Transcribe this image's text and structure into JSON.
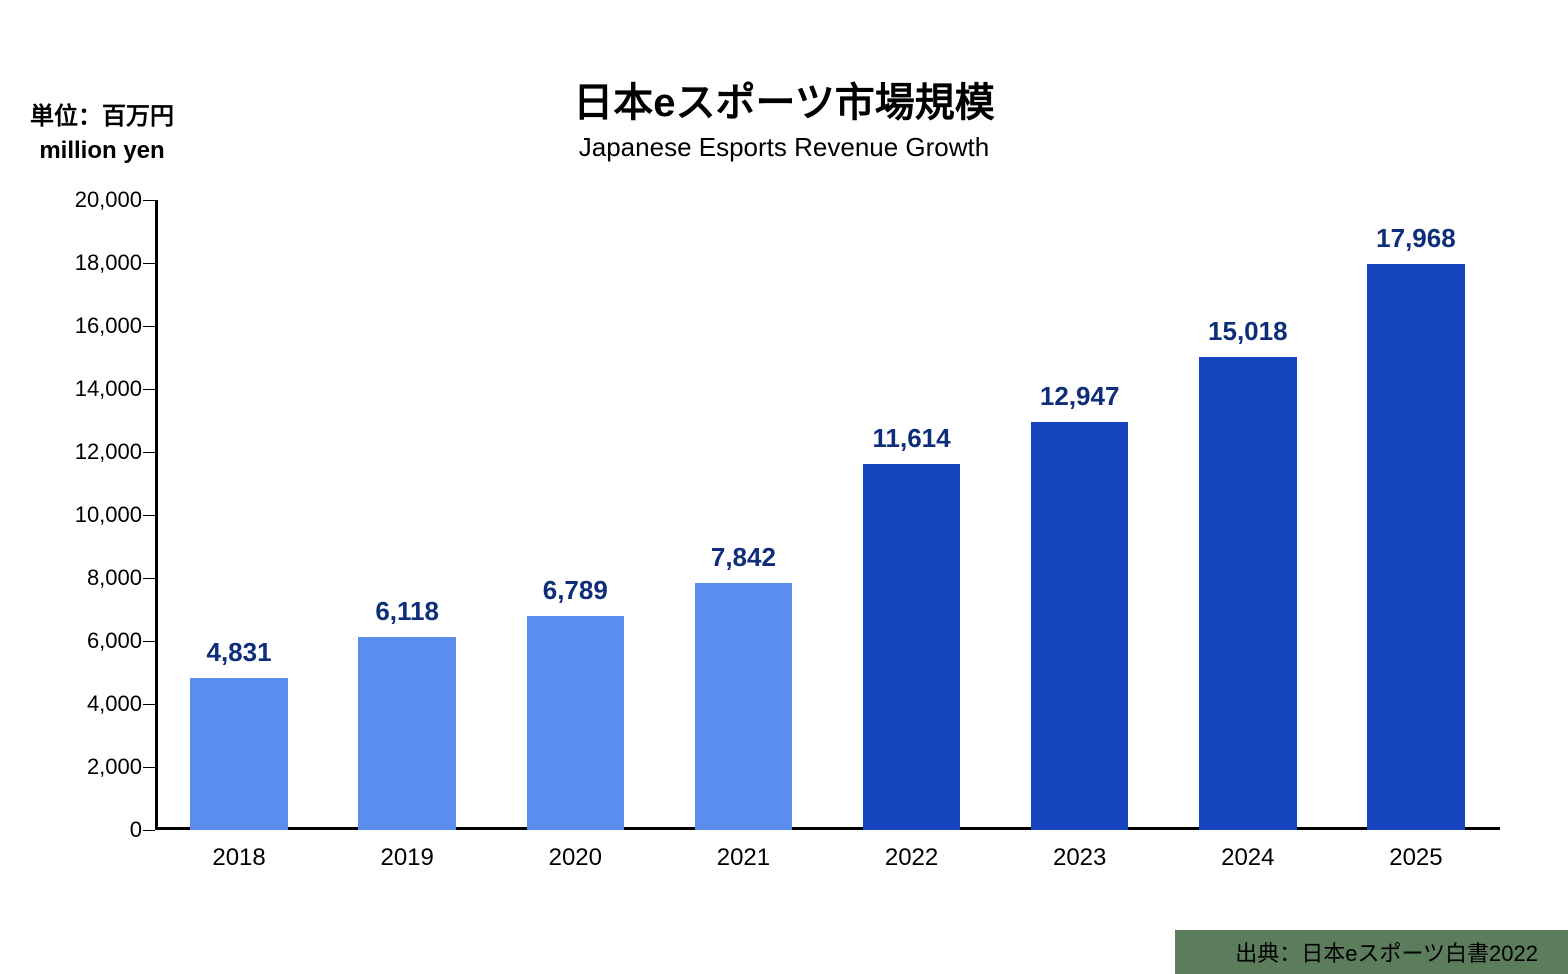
{
  "unit_label_line1": "単位：百万円",
  "unit_label_line2": "million yen",
  "title": "日本eスポーツ市場規模",
  "subtitle": "Japanese Esports Revenue Growth",
  "source_label": "出典：日本eスポーツ白書2022",
  "source_bg_color": "#5c7d5c",
  "chart": {
    "type": "bar",
    "ylim": [
      0,
      20000
    ],
    "ytick_step": 2000,
    "ytick_labels": [
      "0",
      "2,000",
      "4,000",
      "6,000",
      "8,000",
      "10,000",
      "12,000",
      "14,000",
      "16,000",
      "18,000",
      "20,000"
    ],
    "axis_color": "#000000",
    "background_color": "#ffffff",
    "categories": [
      "2018",
      "2019",
      "2020",
      "2021",
      "2022",
      "2023",
      "2024",
      "2025"
    ],
    "values": [
      4831,
      6118,
      6789,
      7842,
      11614,
      12947,
      15018,
      17968
    ],
    "value_labels": [
      "4,831",
      "6,118",
      "6,789",
      "7,842",
      "11,614",
      "12,947",
      "15,018",
      "17,968"
    ],
    "bar_colors": [
      "#5b8def",
      "#5b8def",
      "#5b8def",
      "#5b8def",
      "#1745c0",
      "#1745c0",
      "#1745c0",
      "#1745c0"
    ],
    "value_label_color": "#0e2e7a",
    "value_label_fontsize": 26,
    "x_label_fontsize": 24,
    "bar_width_ratio": 0.58,
    "title_fontsize": 40,
    "subtitle_fontsize": 26
  }
}
